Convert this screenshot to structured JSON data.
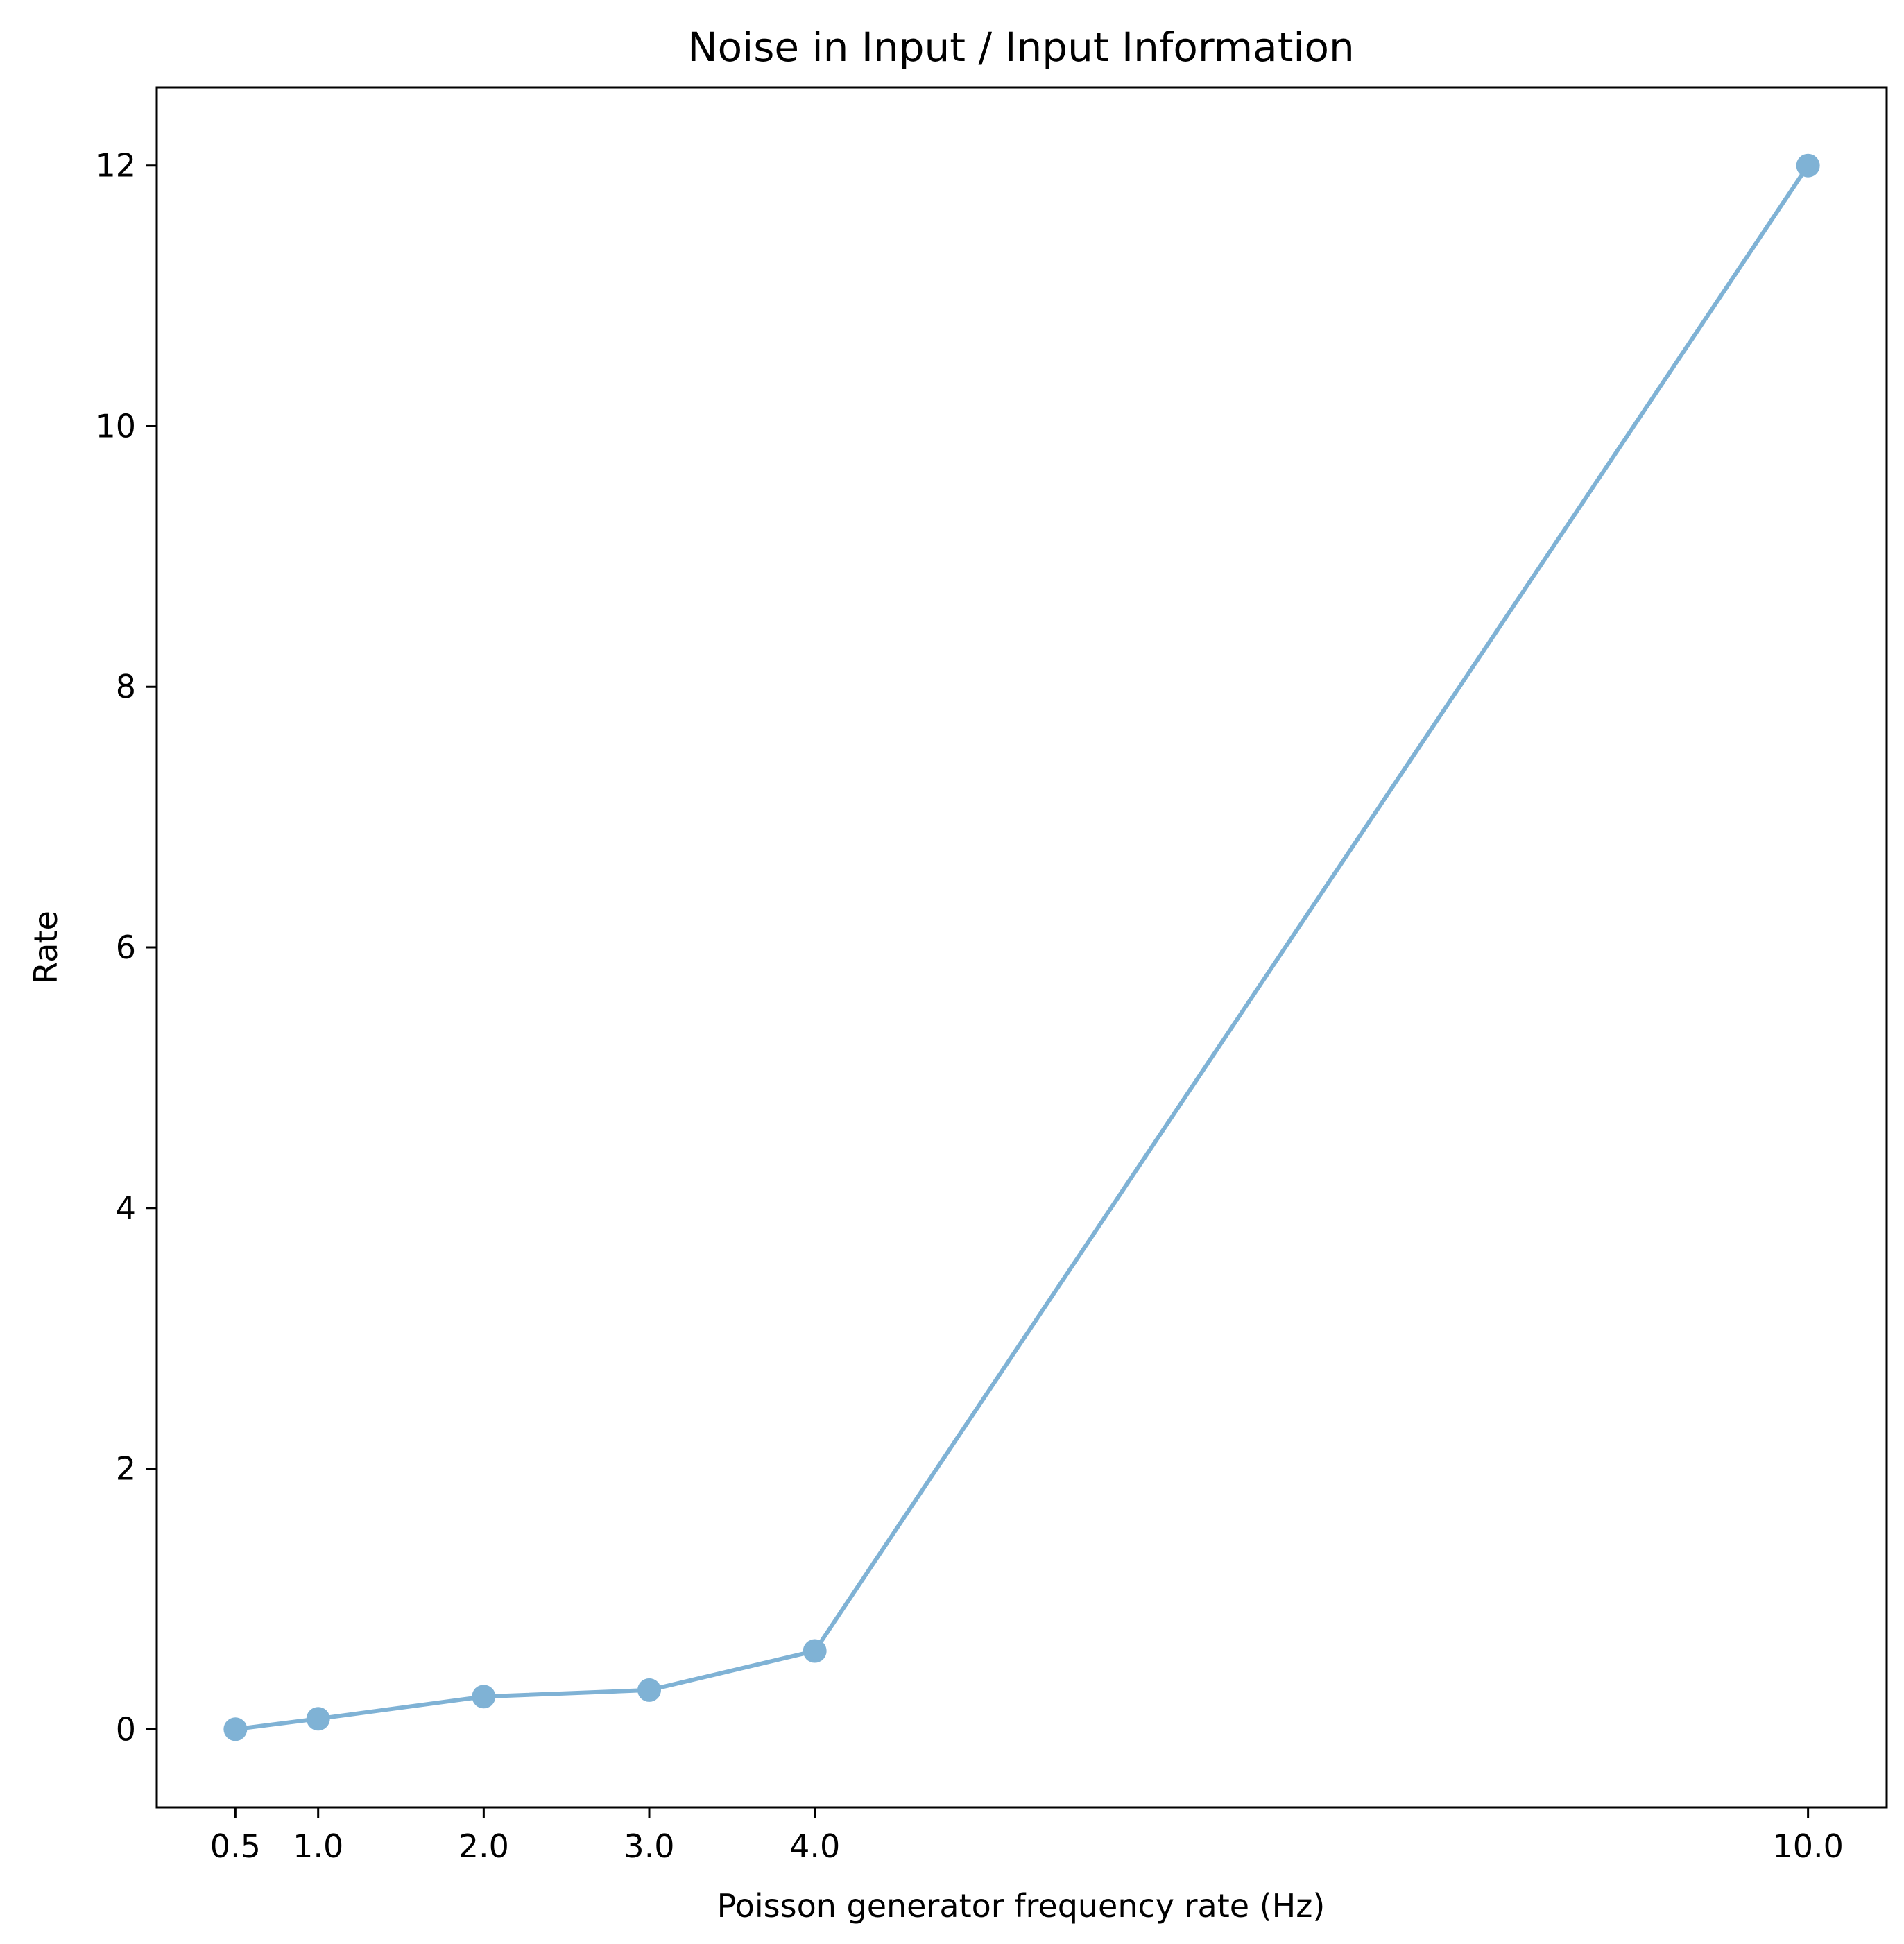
{
  "chart_data": {
    "type": "line",
    "title": "Noise in Input / Input Information",
    "xlabel": "Poisson generator frequency rate (Hz)",
    "ylabel": "Rate",
    "x": [
      0.5,
      1.0,
      2.0,
      3.0,
      4.0,
      10.0
    ],
    "x_tick_labels": [
      "0.5",
      "1.0",
      "2.0",
      "3.0",
      "4.0",
      "10.0"
    ],
    "series": [
      {
        "values": [
          0.0,
          0.08,
          0.25,
          0.3,
          0.6,
          12.0
        ],
        "color": "#7fb2d5"
      }
    ],
    "y_ticks": [
      0,
      2,
      4,
      6,
      8,
      10,
      12
    ],
    "y_tick_labels": [
      "0",
      "2",
      "4",
      "6",
      "8",
      "10",
      "12"
    ],
    "xlim": [
      0.025,
      10.475
    ],
    "ylim": [
      -0.6,
      12.6
    ],
    "grid": false,
    "legend": "none"
  }
}
